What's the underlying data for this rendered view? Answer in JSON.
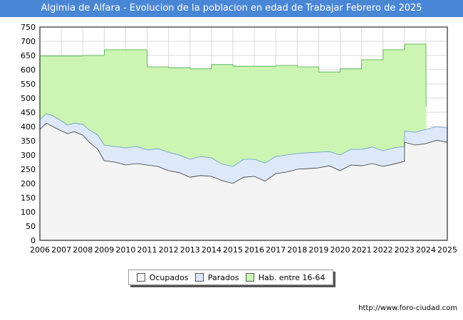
{
  "chart_data": {
    "type": "area",
    "title": "Algimia de Alfara - Evolucion de la poblacion en edad de Trabajar Febrero de 2025",
    "x_ticks": [
      "2006",
      "2007",
      "2008",
      "2009",
      "2010",
      "2011",
      "2012",
      "2013",
      "2014",
      "2015",
      "2016",
      "2017",
      "2018",
      "2019",
      "2020",
      "2021",
      "2022",
      "2023",
      "2024",
      "2025"
    ],
    "y_ticks": [
      0,
      50,
      100,
      150,
      200,
      250,
      300,
      350,
      400,
      450,
      500,
      550,
      600,
      650,
      700,
      750
    ],
    "ylim": [
      0,
      750
    ],
    "xlim": [
      2006,
      2025
    ],
    "series": [
      {
        "name": "Hab. entre 16-64",
        "color": "#ccf5b3",
        "line": "#44aa44",
        "points": [
          [
            2006,
            648
          ],
          [
            2007,
            648
          ],
          [
            2008,
            648
          ],
          [
            2008.01,
            650
          ],
          [
            2009,
            650
          ],
          [
            2009.01,
            670
          ],
          [
            2011,
            670
          ],
          [
            2011.01,
            610
          ],
          [
            2012,
            610
          ],
          [
            2012.01,
            607
          ],
          [
            2013,
            607
          ],
          [
            2013.01,
            603
          ],
          [
            2014,
            603
          ],
          [
            2014.01,
            618
          ],
          [
            2015,
            618
          ],
          [
            2015.01,
            612
          ],
          [
            2017,
            612
          ],
          [
            2017.01,
            615
          ],
          [
            2018,
            615
          ],
          [
            2018.01,
            610
          ],
          [
            2019,
            610
          ],
          [
            2019.01,
            592
          ],
          [
            2020,
            592
          ],
          [
            2020.01,
            603
          ],
          [
            2021,
            603
          ],
          [
            2021.01,
            635
          ],
          [
            2022,
            635
          ],
          [
            2022.01,
            670
          ],
          [
            2023,
            670
          ],
          [
            2023.01,
            690
          ],
          [
            2024,
            690
          ],
          [
            2024.01,
            470
          ]
        ]
      },
      {
        "name": "Parados",
        "color": "#dde9f8",
        "line": "#6699cc",
        "points": [
          [
            2006,
            425
          ],
          [
            2006.3,
            445
          ],
          [
            2006.6,
            438
          ],
          [
            2007,
            420
          ],
          [
            2007.3,
            405
          ],
          [
            2007.6,
            412
          ],
          [
            2008,
            408
          ],
          [
            2008.3,
            388
          ],
          [
            2008.7,
            370
          ],
          [
            2009,
            335
          ],
          [
            2009.5,
            330
          ],
          [
            2010,
            325
          ],
          [
            2010.5,
            330
          ],
          [
            2011,
            318
          ],
          [
            2011.5,
            322
          ],
          [
            2012,
            310
          ],
          [
            2012.5,
            300
          ],
          [
            2013,
            285
          ],
          [
            2013.5,
            295
          ],
          [
            2014,
            290
          ],
          [
            2014.5,
            268
          ],
          [
            2015,
            260
          ],
          [
            2015.5,
            285
          ],
          [
            2016,
            285
          ],
          [
            2016.5,
            272
          ],
          [
            2017,
            295
          ],
          [
            2017.5,
            300
          ],
          [
            2018,
            305
          ],
          [
            2018.5,
            308
          ],
          [
            2019,
            310
          ],
          [
            2019.5,
            312
          ],
          [
            2020,
            300
          ],
          [
            2020.5,
            320
          ],
          [
            2021,
            320
          ],
          [
            2021.5,
            328
          ],
          [
            2022,
            315
          ],
          [
            2022.5,
            325
          ],
          [
            2023,
            330
          ],
          [
            2023.01,
            385
          ],
          [
            2023.5,
            380
          ],
          [
            2024,
            390
          ],
          [
            2024.5,
            400
          ],
          [
            2025,
            395
          ]
        ]
      },
      {
        "name": "Ocupados",
        "color": "#f4f4f4",
        "line": "#333333",
        "points": [
          [
            2006,
            390
          ],
          [
            2006.3,
            412
          ],
          [
            2006.6,
            400
          ],
          [
            2007,
            385
          ],
          [
            2007.3,
            375
          ],
          [
            2007.6,
            382
          ],
          [
            2008,
            370
          ],
          [
            2008.3,
            345
          ],
          [
            2008.7,
            320
          ],
          [
            2009,
            280
          ],
          [
            2009.5,
            275
          ],
          [
            2010,
            265
          ],
          [
            2010.5,
            270
          ],
          [
            2011,
            265
          ],
          [
            2011.5,
            260
          ],
          [
            2012,
            245
          ],
          [
            2012.5,
            238
          ],
          [
            2013,
            222
          ],
          [
            2013.5,
            228
          ],
          [
            2014,
            225
          ],
          [
            2014.5,
            210
          ],
          [
            2015,
            200
          ],
          [
            2015.5,
            222
          ],
          [
            2016,
            225
          ],
          [
            2016.5,
            208
          ],
          [
            2017,
            235
          ],
          [
            2017.5,
            240
          ],
          [
            2018,
            250
          ],
          [
            2018.5,
            252
          ],
          [
            2019,
            255
          ],
          [
            2019.5,
            262
          ],
          [
            2020,
            245
          ],
          [
            2020.5,
            265
          ],
          [
            2021,
            262
          ],
          [
            2021.5,
            270
          ],
          [
            2022,
            260
          ],
          [
            2022.5,
            268
          ],
          [
            2023,
            278
          ],
          [
            2023.01,
            345
          ],
          [
            2023.5,
            335
          ],
          [
            2024,
            340
          ],
          [
            2024.5,
            352
          ],
          [
            2025,
            345
          ]
        ]
      }
    ],
    "legend_position": "bottom"
  },
  "source": "http://www.foro-ciudad.com"
}
